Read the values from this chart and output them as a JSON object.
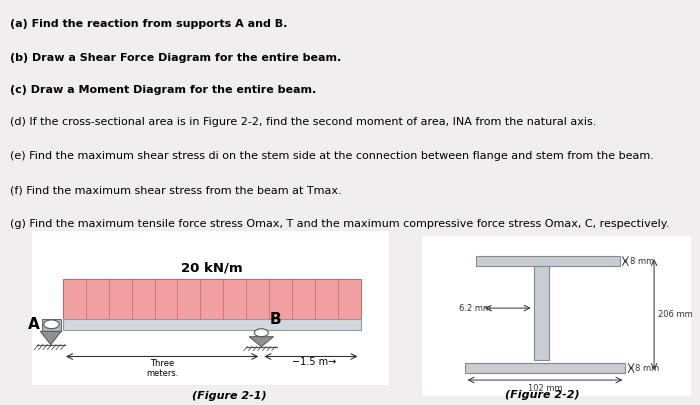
{
  "bg_color": "#f0eeee",
  "text_lines": [
    "(a) Find the reaction from supports A and B.",
    "(b) Draw a Shear Force Diagram for the entire beam.",
    "(c) Draw a Moment Diagram for the entire beam.",
    "(d) If the cross-sectional area is in Figure 2-2, find the second moment of area, INA from the natural axis.",
    "(e) Find the maximum shear stress di on the stem side at the connection between flange and stem from the beam.",
    "(f) Find the maximum shear stress from the beam at Tmax.",
    "(g) Find the maximum tensile force stress Omax, T and the maximum compressive force stress Omax, C, respectively."
  ],
  "bold_lines": [
    0,
    1,
    2
  ],
  "text_fontsize": 8.0,
  "fig1_label": "(Figure 2-1)",
  "fig2_label": "(Figure 2-2)",
  "load_label": "20 kN/m",
  "label_A": "A",
  "label_B": "B",
  "beam_color": "#d0d8e0",
  "load_color": "#f0a0a0",
  "load_line_color": "#d06060",
  "ibeam_color": "#c8cdd4",
  "ibeam_edge": "#888888",
  "dim_color": "#333333",
  "support_color": "#909090"
}
